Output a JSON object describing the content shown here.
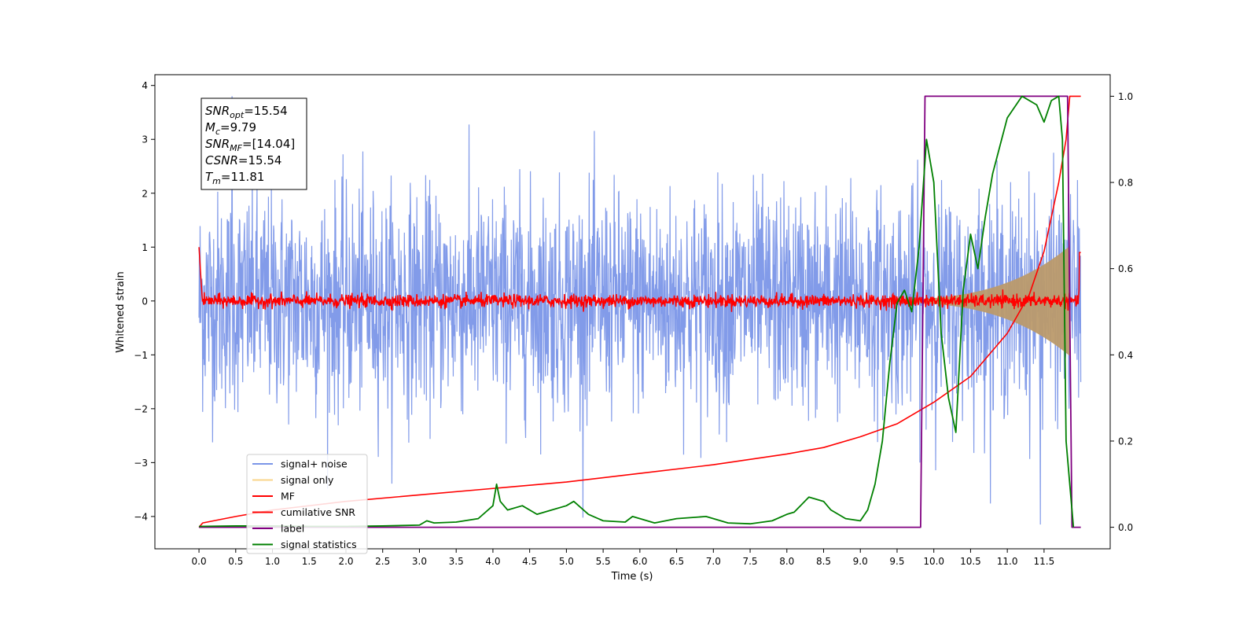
{
  "chart_data": {
    "type": "line",
    "xlabel": "Time (s)",
    "ylabel_left": "Whitened strain",
    "ylabel_right": "",
    "xlim": [
      -0.6,
      12.4
    ],
    "ylim_left": [
      -4.6,
      4.2
    ],
    "ylim_right": [
      -0.05,
      1.05
    ],
    "x_ticks": [
      "0.0",
      "0.5",
      "1.0",
      "1.5",
      "2.0",
      "2.5",
      "3.0",
      "3.5",
      "4.0",
      "4.5",
      "5.0",
      "5.5",
      "6.0",
      "6.5",
      "7.0",
      "7.5",
      "8.0",
      "8.5",
      "9.0",
      "9.5",
      "10.0",
      "10.5",
      "11.0",
      "11.5"
    ],
    "y_left_ticks": [
      "4",
      "3",
      "2",
      "1",
      "0",
      "−1",
      "−2",
      "−3",
      "−4"
    ],
    "y_right_ticks": [
      "1.0",
      "0.8",
      "0.6",
      "0.4",
      "0.2",
      "0.0"
    ],
    "annotation": {
      "lines": [
        {
          "sym": "SNR",
          "sub": "opt",
          "val": "=15.54"
        },
        {
          "sym": "M",
          "sub": "c",
          "val": "=9.79"
        },
        {
          "sym": "SNR",
          "sub": "MF",
          "val": "=[14.04]"
        },
        {
          "sym": "CSNR",
          "sub": "",
          "val": "=15.54"
        },
        {
          "sym": "T",
          "sub": "m",
          "val": "=11.81"
        }
      ]
    },
    "legend": {
      "placement": "lower-left",
      "entries": [
        {
          "label": "signal+ noise",
          "color": "#7b96e8"
        },
        {
          "label": "signal only",
          "color": "#f9d48a"
        },
        {
          "label": "MF",
          "color": "#ff0000"
        },
        {
          "label": "cumilative SNR",
          "color": "#ff0000"
        },
        {
          "label": "label",
          "color": "#800080"
        },
        {
          "label": "signal statistics",
          "color": "#008000"
        }
      ]
    },
    "series": [
      {
        "name": "signal+ noise",
        "axis": "left",
        "color": "#7b96e8",
        "x_range": [
          0.0,
          12.0
        ],
        "spread": 1.0,
        "peaks": [
          3.8,
          -4.15
        ]
      },
      {
        "name": "signal only",
        "axis": "left",
        "color": "#f9d48a",
        "x_range": [
          9.0,
          11.85
        ],
        "amplitude_at_end": 1.0
      },
      {
        "name": "MF",
        "axis": "left",
        "color": "#ff0000",
        "x_range": [
          0.0,
          12.0
        ],
        "level": 0.0,
        "spread": 0.06
      },
      {
        "name": "cumilative SNR",
        "axis": "right",
        "color": "#ff0000",
        "x": [
          0.0,
          0.05,
          0.2,
          0.5,
          1.0,
          2.0,
          3.0,
          4.0,
          5.0,
          6.0,
          7.0,
          8.0,
          8.5,
          9.0,
          9.5,
          10.0,
          10.5,
          11.0,
          11.3,
          11.5,
          11.7,
          11.8,
          11.85,
          12.0
        ],
        "values": [
          0.0,
          0.01,
          0.015,
          0.025,
          0.04,
          0.06,
          0.075,
          0.09,
          0.105,
          0.125,
          0.145,
          0.17,
          0.185,
          0.21,
          0.24,
          0.29,
          0.35,
          0.45,
          0.54,
          0.64,
          0.8,
          0.9,
          1.0,
          1.0
        ]
      },
      {
        "name": "label",
        "axis": "right",
        "color": "#800080",
        "x": [
          0.0,
          9.82,
          9.88,
          11.82,
          11.88,
          12.0
        ],
        "values": [
          0.0,
          0.0,
          1.0,
          1.0,
          0.0,
          0.0
        ]
      },
      {
        "name": "signal statistics",
        "axis": "right",
        "color": "#008000",
        "x": [
          0.0,
          0.5,
          1.0,
          1.5,
          2.0,
          2.5,
          3.0,
          3.1,
          3.2,
          3.5,
          3.8,
          4.0,
          4.05,
          4.1,
          4.2,
          4.4,
          4.6,
          4.8,
          5.0,
          5.1,
          5.3,
          5.5,
          5.8,
          5.9,
          6.0,
          6.2,
          6.5,
          6.9,
          7.2,
          7.5,
          7.8,
          8.0,
          8.1,
          8.3,
          8.5,
          8.6,
          8.8,
          9.0,
          9.1,
          9.2,
          9.3,
          9.4,
          9.5,
          9.6,
          9.7,
          9.8,
          9.9,
          10.0,
          10.1,
          10.2,
          10.3,
          10.4,
          10.5,
          10.6,
          10.7,
          10.8,
          11.0,
          11.2,
          11.4,
          11.5,
          11.6,
          11.7,
          11.75,
          11.8,
          11.9
        ],
        "values": [
          0.002,
          0.003,
          0.003,
          0.002,
          0.002,
          0.003,
          0.005,
          0.015,
          0.01,
          0.012,
          0.02,
          0.05,
          0.1,
          0.06,
          0.04,
          0.05,
          0.03,
          0.04,
          0.05,
          0.06,
          0.03,
          0.015,
          0.012,
          0.025,
          0.02,
          0.01,
          0.02,
          0.025,
          0.01,
          0.008,
          0.015,
          0.03,
          0.035,
          0.07,
          0.06,
          0.04,
          0.02,
          0.015,
          0.04,
          0.1,
          0.2,
          0.38,
          0.52,
          0.55,
          0.5,
          0.65,
          0.9,
          0.8,
          0.45,
          0.3,
          0.22,
          0.55,
          0.68,
          0.6,
          0.72,
          0.82,
          0.95,
          1.0,
          0.98,
          0.94,
          0.99,
          1.0,
          0.9,
          0.2,
          0.0
        ]
      }
    ]
  }
}
